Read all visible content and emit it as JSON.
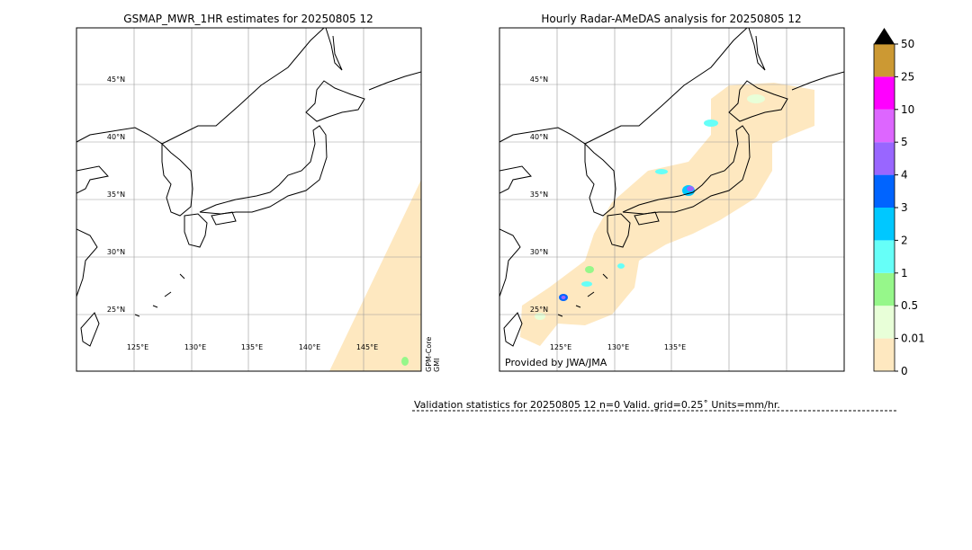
{
  "left_panel": {
    "title": "GSMAP_MWR_1HR estimates for 20250805 12",
    "lat_labels": [
      "45°N",
      "40°N",
      "35°N",
      "30°N",
      "25°N"
    ],
    "lon_labels": [
      "125°E",
      "130°E",
      "135°E",
      "140°E",
      "145°E"
    ],
    "satellite_label": [
      "GPM-Core",
      "GMI"
    ]
  },
  "right_panel": {
    "title": "Hourly Radar-AMeDAS analysis for 20250805 12",
    "lat_labels": [
      "45°N",
      "40°N",
      "35°N",
      "30°N",
      "25°N"
    ],
    "lon_labels": [
      "125°E",
      "130°E",
      "135°E"
    ],
    "credit": "Provided by JWA/JMA"
  },
  "colorbar": {
    "labels": [
      "0",
      "0.01",
      "0.5",
      "1",
      "2",
      "3",
      "4",
      "5",
      "10",
      "25",
      "50"
    ],
    "colors": [
      "#fee8c0",
      "#e8ffd8",
      "#96f78a",
      "#66fff8",
      "#00c8ff",
      "#0064ff",
      "#9966ff",
      "#dd66ff",
      "#ff00ff",
      "#cc9933"
    ]
  },
  "validation": "Validation statistics for 20250805 12  n=0 Valid. grid=0.25˚ Units=mm/hr."
}
